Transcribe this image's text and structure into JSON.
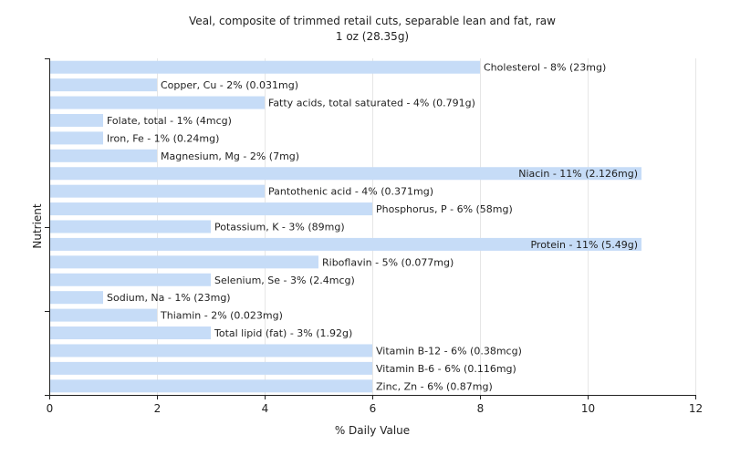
{
  "chart_data": {
    "type": "bar",
    "orientation": "horizontal",
    "title": "Veal, composite of trimmed retail cuts, separable lean and fat, raw",
    "subtitle": "1 oz (28.35g)",
    "xlabel": "% Daily Value",
    "ylabel": "Nutrient",
    "xlim": [
      0,
      12
    ],
    "xticks": [
      0,
      2,
      4,
      6,
      8,
      10,
      12
    ],
    "grid": true,
    "bar_color": "#c6dcf7",
    "categories": [
      "Cholesterol",
      "Copper, Cu",
      "Fatty acids, total saturated",
      "Folate, total",
      "Iron, Fe",
      "Magnesium, Mg",
      "Niacin",
      "Pantothenic acid",
      "Phosphorus, P",
      "Potassium, K",
      "Protein",
      "Riboflavin",
      "Selenium, Se",
      "Sodium, Na",
      "Thiamin",
      "Total lipid (fat)",
      "Vitamin B-12",
      "Vitamin B-6",
      "Zinc, Zn"
    ],
    "values": [
      8,
      2,
      4,
      1,
      1,
      2,
      11,
      4,
      6,
      3,
      11,
      5,
      3,
      1,
      2,
      3,
      6,
      6,
      6
    ],
    "labels": [
      "Cholesterol - 8% (23mg)",
      "Copper, Cu - 2% (0.031mg)",
      "Fatty acids, total saturated - 4% (0.791g)",
      "Folate, total - 1% (4mcg)",
      "Iron, Fe - 1% (0.24mg)",
      "Magnesium, Mg - 2% (7mg)",
      "Niacin - 11% (2.126mg)",
      "Pantothenic acid - 4% (0.371mg)",
      "Phosphorus, P - 6% (58mg)",
      "Potassium, K - 3% (89mg)",
      "Protein - 11% (5.49g)",
      "Riboflavin - 5% (0.077mg)",
      "Selenium, Se - 3% (2.4mcg)",
      "Sodium, Na - 1% (23mg)",
      "Thiamin - 2% (0.023mg)",
      "Total lipid (fat) - 3% (1.92g)",
      "Vitamin B-12 - 6% (0.38mcg)",
      "Vitamin B-6 - 6% (0.116mg)",
      "Zinc, Zn - 6% (0.87mg)"
    ]
  }
}
